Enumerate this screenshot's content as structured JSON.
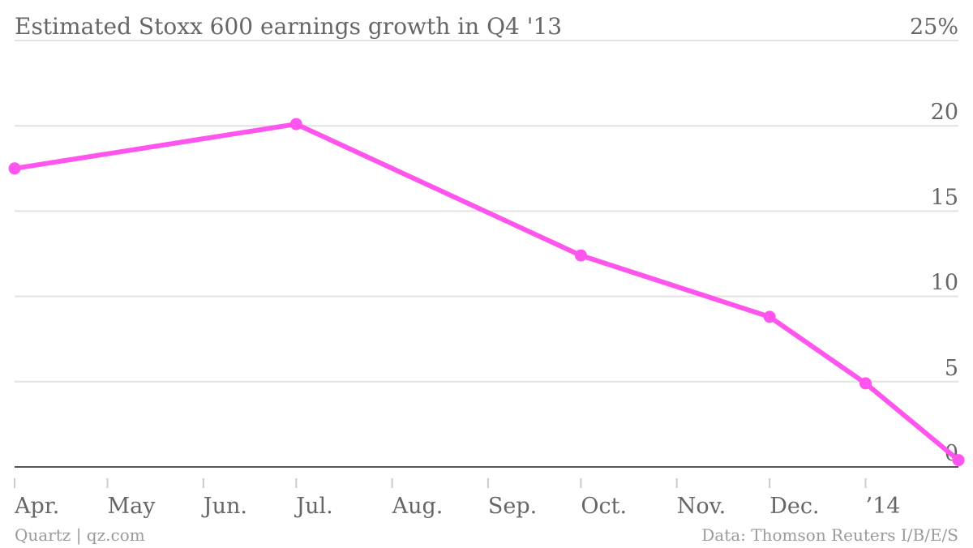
{
  "chart_data": {
    "type": "line",
    "title": "Estimated Stoxx 600 earnings growth in Q4 '13",
    "y_unit_label": "25%",
    "y_ticks": [
      "0",
      "5",
      "10",
      "15",
      "20"
    ],
    "ylim": [
      0,
      25
    ],
    "x_tick_labels": [
      "Apr.",
      "May",
      "Jun.",
      "Jul.",
      "Aug.",
      "Sep.",
      "Oct.",
      "Nov.",
      "Dec.",
      "’14"
    ],
    "x_axis_start": "2013-04-01",
    "x_axis_end": "2014-01-31",
    "series": [
      {
        "color": "#ff55ee",
        "points": [
          {
            "x": "2013-04-01",
            "y": 17.5
          },
          {
            "x": "2013-07-01",
            "y": 20.1
          },
          {
            "x": "2013-10-01",
            "y": 12.4
          },
          {
            "x": "2013-12-01",
            "y": 8.8
          },
          {
            "x": "2014-01-01",
            "y": 4.9
          },
          {
            "x": "2014-01-31",
            "y": 0.4
          }
        ]
      }
    ],
    "grid": true,
    "legend": "none"
  },
  "footer": {
    "source_left": "Quartz | qz.com",
    "source_right": "Data: Thomson Reuters I/B/E/S"
  }
}
